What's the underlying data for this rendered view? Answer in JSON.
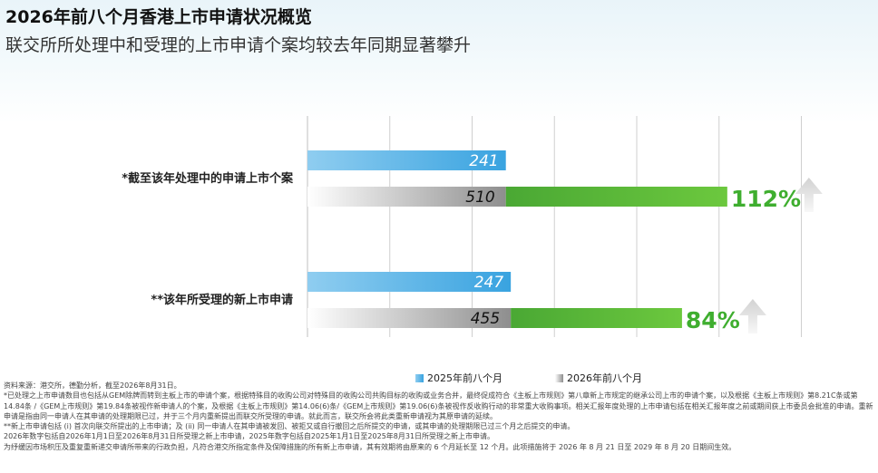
{
  "header": {
    "title": "2026年前八个月香港上市申请状况概览",
    "subtitle": "联交所所处理中和受理的上市申请个案均较去年同期显著攀升"
  },
  "chart_data": {
    "type": "bar",
    "orientation": "horizontal",
    "categories": [
      "*截至该年处理中的申请上市个案",
      "**该年所受理的新上市申请"
    ],
    "series": [
      {
        "name": "2025年前八个月",
        "values": [
          241,
          247
        ],
        "color": "#4aa8e0"
      },
      {
        "name": "2026年前八个月",
        "values": [
          510,
          455
        ],
        "color": "#4fb52f"
      }
    ],
    "growth_labels": [
      "112%",
      "84%"
    ],
    "xlim": [
      0,
      600
    ],
    "grid": true,
    "legend_position": "bottom"
  },
  "notes": [
    "资料来源：港交所，德勤分析，截至2026年8月31日。",
    "*已处理之上市申请数目也包括从GEM除牌而转到主板上市的申请个案，根据特殊目的收购公司对特殊目的收购公司共购目标的收购或业务合并，最终促成符合《主板上市规则》第八章新上市规定的继承公司上市的申请个案，以及根据《主板上市规则》第8.21C条或第14.84条 /《GEM上市规则》第19.84条被视作新申请人的个案，及根据《主板上市规则》第14.06(6)条/《GEM上市规则》第19.06(6)条被视作反收购行动的非常重大收购事项。相关汇报年度处理的上市申请包括在相关汇报年度之前或期间获上市委员会批准的申请。重新申请是指由同一申请人在其申请的处理期限已过，并于三个月内重新提出而联交所受理的申请。就此而言，联交所会将此类重新申请视为其原申请的延续。",
    "**新上市申请包括 (i) 首次向联交所提出的上市申请；及 (ii) 同一申请人在其申请被发回、被拒又或自行撤回之后所提交的申请，或其申请的处理期限已过三个月之后提交的申请。",
    "2026年数字包括自2026年1月1日至2026年8月31日所受理之新上市申请，2025年数字包括自2025年1月1日至2025年8月31日所受理之新上市申请。",
    "为纾缓因市场积压及重复重新递交申请所带来的行政负担，凡符合港交所指定条件及保障措施的所有新上市申请，其有效期将由原来的 6 个月延长至 12 个月。此项措施将于 2026 年 8 月 21 日至 2029 年 8 月 20 日期间生效。"
  ]
}
